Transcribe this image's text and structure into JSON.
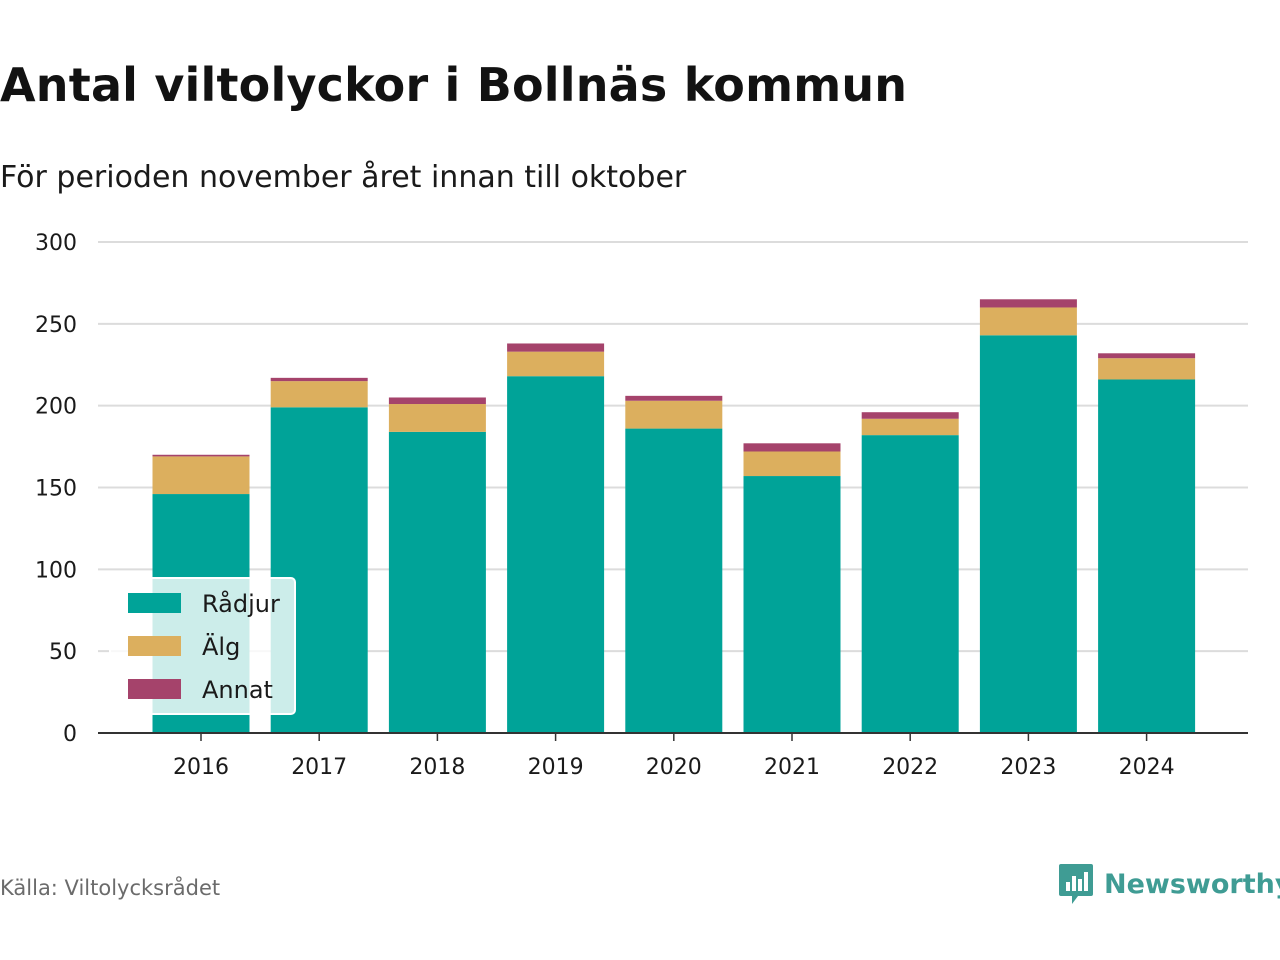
{
  "title": "Antal viltolyckor i Bollnäs kommun",
  "subtitle": "För perioden november året innan till oktober",
  "source": "Källa: Viltolycksrådet",
  "brand": "Newsworthy",
  "colors": {
    "radjur": "#00a398",
    "alg": "#dcaf5e",
    "annat": "#a5436b",
    "grid": "#dcdcdc",
    "axis": "#333333",
    "brand": "#3f9c94"
  },
  "chart_data": {
    "type": "bar",
    "stacked": true,
    "categories": [
      "2016",
      "2017",
      "2018",
      "2019",
      "2020",
      "2021",
      "2022",
      "2023",
      "2024"
    ],
    "series": [
      {
        "name": "Rådjur",
        "values": [
          146,
          199,
          184,
          218,
          186,
          157,
          182,
          243,
          216
        ]
      },
      {
        "name": "Älg",
        "values": [
          23,
          16,
          17,
          15,
          17,
          15,
          10,
          17,
          13
        ]
      },
      {
        "name": "Annat",
        "values": [
          1,
          2,
          4,
          5,
          3,
          5,
          4,
          5,
          3
        ]
      }
    ],
    "ylim": [
      0,
      300
    ],
    "yticks": [
      0,
      50,
      100,
      150,
      200,
      250,
      300
    ],
    "grid": true,
    "legend_position": "bottom-left"
  }
}
